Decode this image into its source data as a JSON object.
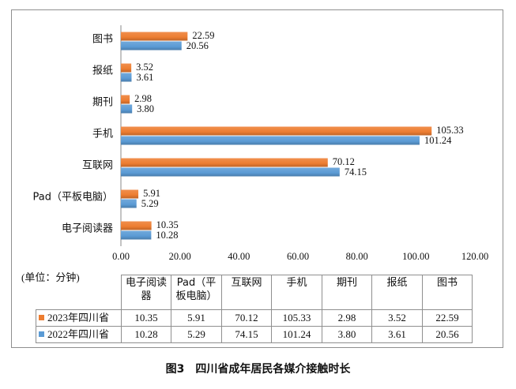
{
  "chart_data": {
    "type": "bar",
    "orientation": "horizontal",
    "categories": [
      "图书",
      "报纸",
      "期刊",
      "手机",
      "互联网",
      "Pad（平板电脑）",
      "电子阅读器"
    ],
    "series": [
      {
        "name": "2023年四川省",
        "color": "#ED7D31",
        "values": [
          22.59,
          3.52,
          2.98,
          105.33,
          70.12,
          5.91,
          10.35
        ]
      },
      {
        "name": "2022年四川省",
        "color": "#5B9BD5",
        "values": [
          20.56,
          3.61,
          3.8,
          101.24,
          74.15,
          5.29,
          10.28
        ]
      }
    ],
    "xlim": [
      0,
      120
    ],
    "x_ticks": [
      "0.00",
      "20.00",
      "40.00",
      "60.00",
      "80.00",
      "100.00",
      "120.00"
    ],
    "unit_label": "(单位：分钟)",
    "data_labels": true,
    "grid": false,
    "legend": "bottom"
  },
  "data_table": {
    "columns": [
      "电子阅读器",
      "Pad（平板电脑）",
      "互联网",
      "手机",
      "期刊",
      "报纸",
      "图书"
    ],
    "rows": [
      {
        "values": [
          "10.35",
          "5.91",
          "70.12",
          "105.33",
          "2.98",
          "3.52",
          "22.59"
        ]
      },
      {
        "values": [
          "10.28",
          "5.29",
          "74.15",
          "101.24",
          "3.80",
          "3.61",
          "20.56"
        ]
      }
    ]
  },
  "caption": {
    "label": "图3",
    "title": "四川省成年居民各媒介接触时长"
  }
}
